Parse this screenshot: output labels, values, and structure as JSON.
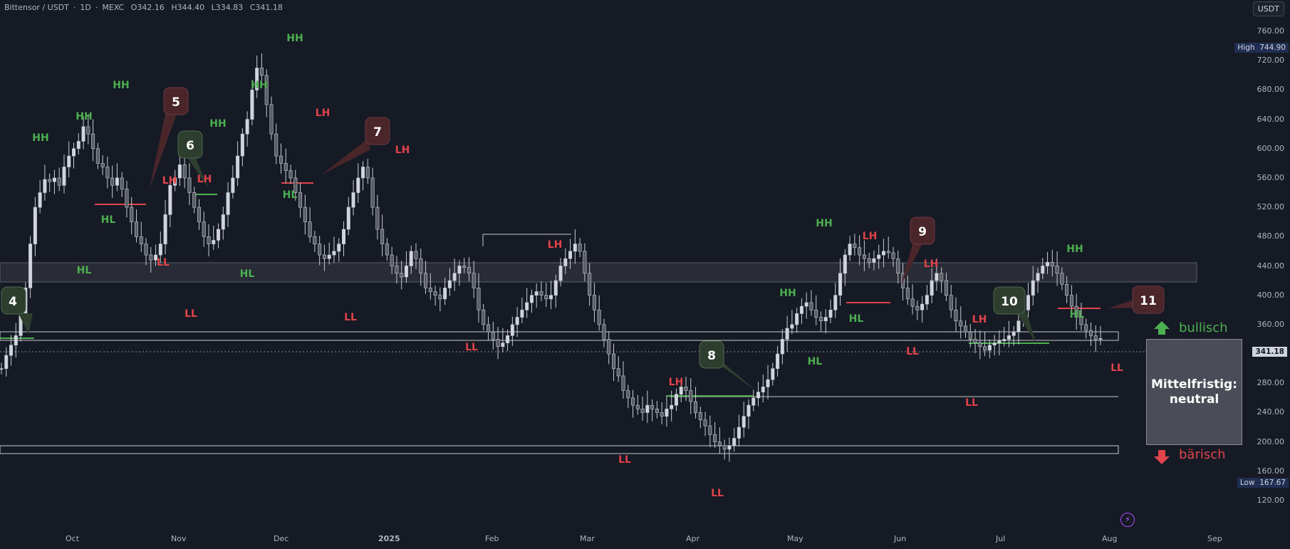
{
  "header": {
    "title": "Bittensor / USDT",
    "interval": "1D",
    "exchange": "MEXC",
    "open": "O342.16",
    "high": "H344.40",
    "low": "L334.83",
    "close": "C341.18",
    "currency": "USDT"
  },
  "price_axis": {
    "labels": [
      "760.00",
      "720.00",
      "680.00",
      "640.00",
      "600.00",
      "560.00",
      "520.00",
      "480.00",
      "440.00",
      "400.00",
      "360.00",
      "320.00",
      "280.00",
      "240.00",
      "200.00",
      "160.00",
      "120.00"
    ],
    "high_label": "High",
    "high_value": "744.90",
    "low_label": "Low",
    "low_value": "167.67",
    "last_value": "341.18"
  },
  "time_axis": {
    "labels": [
      "Oct",
      "Nov",
      "Dec",
      "2025",
      "Feb",
      "Mar",
      "Apr",
      "May",
      "Jun",
      "Jul",
      "Aug",
      "Sep"
    ]
  },
  "annotations": {
    "bullish": "bullisch",
    "bearish": "bärisch",
    "sentiment": "Mittelfristig: neutral",
    "callouts": [
      "4",
      "5",
      "6",
      "7",
      "8",
      "9",
      "10",
      "11"
    ],
    "structure_labels": [
      {
        "text": "HH",
        "kind": "up"
      },
      {
        "text": "HH",
        "kind": "up"
      },
      {
        "text": "HH",
        "kind": "up"
      },
      {
        "text": "HL",
        "kind": "up"
      },
      {
        "text": "HL",
        "kind": "up"
      },
      {
        "text": "LH",
        "kind": "down"
      },
      {
        "text": "LL",
        "kind": "down"
      },
      {
        "text": "LL",
        "kind": "down"
      },
      {
        "text": "HH",
        "kind": "up"
      },
      {
        "text": "LH",
        "kind": "down"
      },
      {
        "text": "HL",
        "kind": "up"
      },
      {
        "text": "HH",
        "kind": "up"
      },
      {
        "text": "HH",
        "kind": "up"
      },
      {
        "text": "LH",
        "kind": "down"
      },
      {
        "text": "HL",
        "kind": "up"
      },
      {
        "text": "LH",
        "kind": "down"
      },
      {
        "text": "LL",
        "kind": "down"
      },
      {
        "text": "LH",
        "kind": "down"
      },
      {
        "text": "LL",
        "kind": "down"
      },
      {
        "text": "LL",
        "kind": "down"
      },
      {
        "text": "LH",
        "kind": "down"
      },
      {
        "text": "LL",
        "kind": "down"
      },
      {
        "text": "HH",
        "kind": "up"
      },
      {
        "text": "HL",
        "kind": "up"
      },
      {
        "text": "HH",
        "kind": "up"
      },
      {
        "text": "LH",
        "kind": "down"
      },
      {
        "text": "HL",
        "kind": "up"
      },
      {
        "text": "LH",
        "kind": "down"
      },
      {
        "text": "LL",
        "kind": "down"
      },
      {
        "text": "LH",
        "kind": "down"
      },
      {
        "text": "LL",
        "kind": "down"
      },
      {
        "text": "HH",
        "kind": "up"
      },
      {
        "text": "HL",
        "kind": "up"
      },
      {
        "text": "LL",
        "kind": "down"
      }
    ]
  },
  "chart_data": {
    "type": "candlestick",
    "ylim": [
      100,
      780
    ],
    "price_levels": [
      {
        "name": "resistance-zone",
        "low": 435,
        "high": 460
      },
      {
        "name": "breakout-line-upper",
        "value": 368
      },
      {
        "name": "breakout-line-lower",
        "value": 358
      },
      {
        "name": "support-280",
        "value": 281
      },
      {
        "name": "support-zone-low",
        "low": 205,
        "high": 217
      }
    ],
    "close_series": [
      300,
      318,
      332,
      345,
      372,
      410,
      470,
      520,
      540,
      558,
      555,
      560,
      550,
      575,
      590,
      600,
      610,
      630,
      620,
      600,
      580,
      575,
      560,
      550,
      560,
      545,
      520,
      500,
      480,
      470,
      455,
      448,
      455,
      470,
      510,
      550,
      560,
      578,
      560,
      540,
      520,
      500,
      480,
      470,
      475,
      490,
      510,
      540,
      560,
      590,
      620,
      640,
      680,
      710,
      700,
      660,
      620,
      590,
      580,
      570,
      560,
      540,
      520,
      500,
      480,
      470,
      455,
      450,
      455,
      460,
      470,
      490,
      520,
      540,
      560,
      575,
      560,
      520,
      490,
      470,
      455,
      440,
      430,
      425,
      440,
      460,
      450,
      430,
      410,
      405,
      400,
      395,
      410,
      420,
      430,
      440,
      438,
      430,
      410,
      380,
      360,
      350,
      340,
      330,
      335,
      345,
      360,
      370,
      380,
      390,
      400,
      405,
      400,
      395,
      400,
      420,
      440,
      450,
      460,
      470,
      460,
      430,
      400,
      380,
      360,
      340,
      320,
      300,
      290,
      270,
      260,
      250,
      245,
      240,
      250,
      245,
      240,
      235,
      245,
      250,
      265,
      275,
      270,
      255,
      240,
      230,
      222,
      210,
      200,
      195,
      190,
      195,
      205,
      220,
      235,
      250,
      260,
      268,
      275,
      285,
      300,
      320,
      340,
      355,
      360,
      375,
      385,
      390,
      380,
      370,
      365,
      370,
      380,
      400,
      430,
      455,
      470,
      465,
      455,
      450,
      445,
      450,
      455,
      460,
      458,
      450,
      430,
      410,
      395,
      385,
      380,
      388,
      400,
      420,
      430,
      420,
      400,
      380,
      365,
      358,
      350,
      340,
      335,
      330,
      325,
      332,
      335,
      338,
      340,
      345,
      350,
      365,
      380,
      400,
      420,
      430,
      440,
      445,
      440,
      430,
      415,
      400,
      385,
      370,
      360,
      352,
      345,
      340,
      341
    ]
  }
}
